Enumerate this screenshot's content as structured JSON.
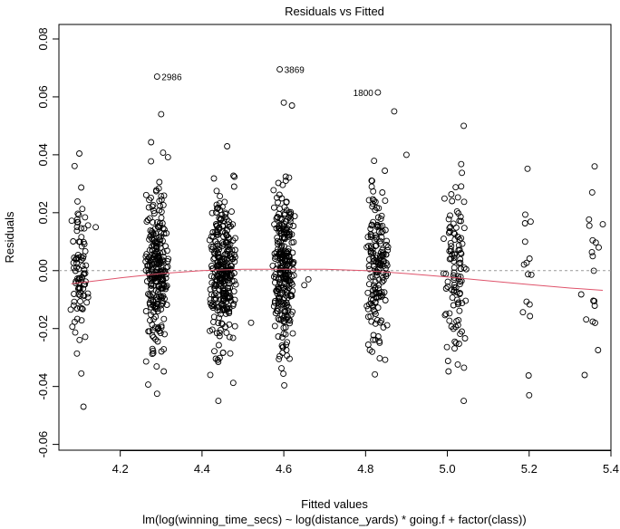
{
  "chart_data": {
    "type": "scatter",
    "title": "Residuals vs Fitted",
    "xlabel": "Fitted values",
    "ylabel": "Residuals",
    "subtitle": "lm(log(winning_time_secs) ~ log(distance_yards) * going.f + factor(class))",
    "xlim": [
      4.05,
      5.4
    ],
    "ylim": [
      -0.062,
      0.085
    ],
    "x_ticks": [
      4.2,
      4.4,
      4.6,
      4.8,
      5.0,
      5.2,
      5.4
    ],
    "x_tick_labels": [
      "4.2",
      "4.4",
      "4.6",
      "4.8",
      "5.0",
      "5.2",
      "5.4"
    ],
    "y_ticks": [
      -0.06,
      -0.04,
      -0.02,
      0.0,
      0.02,
      0.04,
      0.06,
      0.08
    ],
    "y_tick_labels": [
      "-0.06",
      "-0.04",
      "-0.02",
      "0.00",
      "0.02",
      "0.04",
      "0.06",
      "0.08"
    ],
    "zero_line": 0.0,
    "grid": false,
    "clusters": [
      {
        "center": 4.1,
        "spread": 0.025,
        "count": 90,
        "sd": 0.018
      },
      {
        "center": 4.29,
        "spread": 0.03,
        "count": 260,
        "sd": 0.016
      },
      {
        "center": 4.45,
        "spread": 0.035,
        "count": 300,
        "sd": 0.016
      },
      {
        "center": 4.6,
        "spread": 0.03,
        "count": 270,
        "sd": 0.016
      },
      {
        "center": 4.83,
        "spread": 0.03,
        "count": 170,
        "sd": 0.017
      },
      {
        "center": 5.02,
        "spread": 0.03,
        "count": 110,
        "sd": 0.018
      },
      {
        "center": 5.2,
        "spread": 0.02,
        "count": 14,
        "sd": 0.02
      },
      {
        "center": 5.35,
        "spread": 0.025,
        "count": 18,
        "sd": 0.018
      }
    ],
    "extra_points": [
      {
        "x": 4.29,
        "y": -0.0425
      },
      {
        "x": 4.3,
        "y": 0.054
      },
      {
        "x": 4.11,
        "y": -0.047
      },
      {
        "x": 4.44,
        "y": -0.045
      },
      {
        "x": 4.6,
        "y": 0.058
      },
      {
        "x": 4.62,
        "y": 0.057
      },
      {
        "x": 4.87,
        "y": 0.055
      },
      {
        "x": 4.9,
        "y": 0.04
      },
      {
        "x": 5.04,
        "y": 0.05
      },
      {
        "x": 5.04,
        "y": -0.045
      },
      {
        "x": 5.36,
        "y": 0.036
      },
      {
        "x": 5.38,
        "y": 0.016
      },
      {
        "x": 5.2,
        "y": -0.043
      },
      {
        "x": 5.19,
        "y": 0.01
      },
      {
        "x": 4.66,
        "y": -0.003
      },
      {
        "x": 4.65,
        "y": -0.005
      },
      {
        "x": 4.52,
        "y": -0.018
      },
      {
        "x": 4.14,
        "y": 0.015
      }
    ],
    "labeled_points": [
      {
        "label": "2986",
        "x": 4.29,
        "y": 0.067
      },
      {
        "label": "3869",
        "x": 4.59,
        "y": 0.0695
      },
      {
        "label": "1800",
        "x": 4.83,
        "y": 0.0615
      }
    ],
    "smoother": {
      "x": [
        4.08,
        4.2,
        4.3,
        4.4,
        4.5,
        4.6,
        4.7,
        4.8,
        4.9,
        5.0,
        5.1,
        5.2,
        5.3,
        5.38
      ],
      "y": [
        -0.0045,
        -0.0025,
        -0.001,
        0.0,
        0.0005,
        0.0005,
        0.0005,
        0.0,
        -0.001,
        -0.0022,
        -0.0035,
        -0.0048,
        -0.006,
        -0.0068
      ],
      "color": "#DF536B"
    },
    "colors": {
      "points": "#000000",
      "zero_line": "#999999",
      "smoother": "#DF536B"
    }
  }
}
